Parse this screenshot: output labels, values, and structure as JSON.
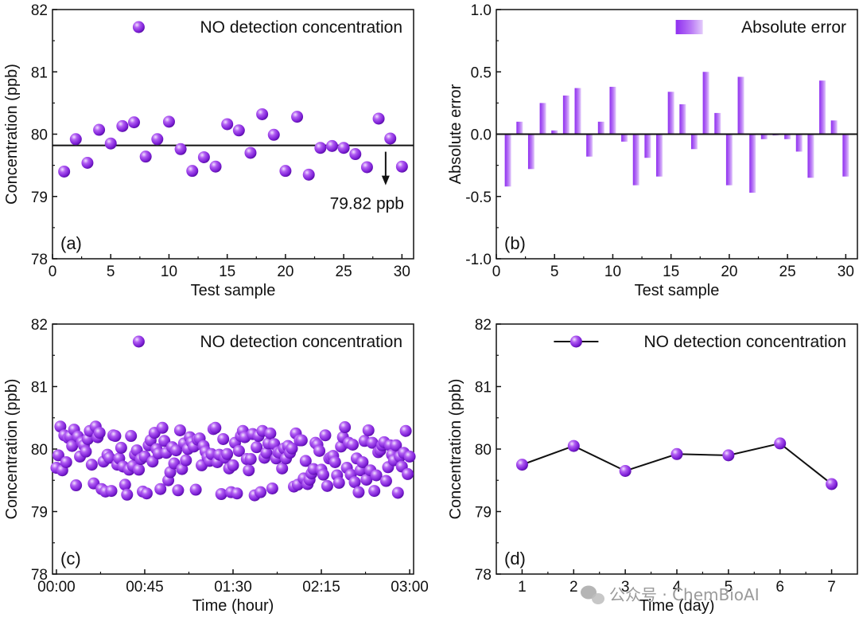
{
  "colors": {
    "accent": "#8a2be2",
    "accent_dark": "#5a0fa8",
    "axis": "#111111"
  },
  "watermark": {
    "text": "公众号 · ChemBioAI",
    "icon": "wechat-icon"
  },
  "chart_data": [
    {
      "id": "a",
      "panel_label": "(a)",
      "type": "scatter",
      "xlabel": "Test sample",
      "ylabel": "Concentration (ppb)",
      "xlim": [
        0,
        31
      ],
      "ylim": [
        78,
        82
      ],
      "xticks": [
        "0",
        "5",
        "10",
        "15",
        "20",
        "25",
        "30"
      ],
      "yticks": [
        "78",
        "79",
        "80",
        "81",
        "82"
      ],
      "legend": {
        "label": "NO detection concentration",
        "position": "top-right"
      },
      "reference_line": {
        "y": 79.82,
        "label": "79.82 ppb"
      },
      "x": [
        1,
        2,
        3,
        4,
        5,
        6,
        7,
        8,
        9,
        10,
        11,
        12,
        13,
        14,
        15,
        16,
        17,
        18,
        19,
        20,
        21,
        22,
        23,
        24,
        25,
        26,
        27,
        28,
        29,
        30
      ],
      "y": [
        79.4,
        79.92,
        79.54,
        80.07,
        79.85,
        80.13,
        80.19,
        79.64,
        79.92,
        80.2,
        79.76,
        79.41,
        79.63,
        79.48,
        80.16,
        80.06,
        79.7,
        80.32,
        79.99,
        79.41,
        80.28,
        79.35,
        79.78,
        79.81,
        79.78,
        79.68,
        79.47,
        80.25,
        79.93,
        79.48
      ]
    },
    {
      "id": "b",
      "panel_label": "(b)",
      "type": "bar",
      "xlabel": "Test sample",
      "ylabel": "Absolute error",
      "xlim": [
        0,
        31
      ],
      "ylim": [
        -1.0,
        1.0
      ],
      "xticks": [
        "0",
        "5",
        "10",
        "15",
        "20",
        "25",
        "30"
      ],
      "yticks": [
        "-1.0",
        "-0.5",
        "0.0",
        "0.5",
        "1.0"
      ],
      "legend": {
        "label": "Absolute error",
        "position": "top-right"
      },
      "x": [
        1,
        2,
        3,
        4,
        5,
        6,
        7,
        8,
        9,
        10,
        11,
        12,
        13,
        14,
        15,
        16,
        17,
        18,
        19,
        20,
        21,
        22,
        23,
        24,
        25,
        26,
        27,
        28,
        29,
        30
      ],
      "values": [
        -0.42,
        0.1,
        -0.28,
        0.25,
        0.03,
        0.31,
        0.37,
        -0.18,
        0.1,
        0.38,
        -0.06,
        -0.41,
        -0.19,
        -0.34,
        0.34,
        0.24,
        -0.12,
        0.5,
        0.17,
        -0.41,
        0.46,
        -0.47,
        -0.04,
        -0.01,
        -0.04,
        -0.14,
        -0.35,
        0.43,
        0.11,
        -0.34
      ]
    },
    {
      "id": "c",
      "panel_label": "(c)",
      "type": "scatter",
      "xlabel": "Time (hour)",
      "ylabel": "Concentration (ppb)",
      "xlim": [
        -2,
        182
      ],
      "ylim": [
        78,
        82
      ],
      "xticks": [
        "00:00",
        "00:45",
        "01:30",
        "02:15",
        "03:00"
      ],
      "xtick_minutes": [
        0,
        45,
        90,
        135,
        180
      ],
      "yticks": [
        "78",
        "79",
        "80",
        "81",
        "82"
      ],
      "legend": {
        "label": "NO detection concentration",
        "position": "top-right"
      },
      "x_minutes": [
        0,
        1,
        2,
        3,
        4,
        5,
        6,
        7,
        8,
        9,
        10,
        11,
        12,
        13,
        14,
        15,
        16,
        17,
        18,
        19,
        20,
        21,
        22,
        23,
        24,
        25,
        26,
        27,
        28,
        29,
        30,
        31,
        32,
        33,
        34,
        35,
        36,
        37,
        38,
        39,
        40,
        41,
        42,
        43,
        44,
        45,
        46,
        47,
        48,
        49,
        50,
        51,
        52,
        53,
        54,
        55,
        56,
        57,
        58,
        59,
        60,
        61,
        62,
        63,
        64,
        65,
        66,
        67,
        68,
        69,
        70,
        71,
        72,
        73,
        74,
        75,
        76,
        77,
        78,
        79,
        80,
        81,
        82,
        83,
        84,
        85,
        86,
        87,
        88,
        89,
        90,
        91,
        92,
        93,
        94,
        95,
        96,
        97,
        98,
        99,
        100,
        101,
        102,
        103,
        104,
        105,
        106,
        107,
        108,
        109,
        110,
        111,
        112,
        113,
        114,
        115,
        116,
        117,
        118,
        119,
        120,
        121,
        122,
        123,
        124,
        125,
        126,
        127,
        128,
        129,
        130,
        131,
        132,
        133,
        134,
        135,
        136,
        137,
        138,
        139,
        140,
        141,
        142,
        143,
        144,
        145,
        146,
        147,
        148,
        149,
        150,
        151,
        152,
        153,
        154,
        155,
        156,
        157,
        158,
        159,
        160,
        161,
        162,
        163,
        164,
        165,
        166,
        167,
        168,
        169,
        170,
        171,
        172,
        173,
        174,
        175,
        176,
        177,
        178,
        179,
        180
      ],
      "y": [
        79.7,
        79.9,
        80.36,
        79.66,
        80.22,
        79.79,
        80.18,
        80.2,
        80.05,
        80.31,
        79.42,
        80.2,
        79.88,
        80.11,
        80.06,
        79.96,
        80.16,
        80.29,
        79.75,
        79.45,
        80.36,
        80.19,
        80.26,
        79.36,
        79.8,
        79.32,
        79.91,
        79.86,
        79.33,
        80.22,
        80.21,
        79.75,
        79.85,
        80.02,
        79.72,
        79.43,
        79.27,
        79.67,
        80.21,
        79.73,
        79.91,
        79.98,
        79.67,
        79.84,
        79.32,
        79.88,
        79.29,
        80.06,
        80.14,
        79.8,
        80.26,
        80.0,
        79.93,
        79.36,
        80.34,
        80.13,
        79.94,
        79.5,
        79.63,
        80.03,
        79.77,
        79.98,
        79.34,
        80.3,
        79.68,
        80.09,
        79.82,
        80.0,
        80.19,
        80.11,
        80.04,
        79.35,
        80.15,
        80.17,
        79.74,
        80.05,
        79.96,
        79.87,
        79.81,
        79.92,
        80.32,
        80.34,
        79.79,
        79.91,
        79.28,
        80.16,
        79.86,
        79.92,
        79.69,
        79.31,
        79.74,
        80.1,
        79.29,
        79.97,
        80.21,
        80.29,
        80.19,
        79.84,
        79.66,
        79.84,
        80.24,
        79.26,
        80.03,
        80.21,
        79.31,
        80.29,
        79.86,
        79.94,
        80.09,
        80.25,
        79.37,
        80.08,
        79.85,
        79.95,
        79.94,
        79.69,
        80.01,
        79.85,
        80.05,
        79.94,
        80.01,
        79.4,
        80.25,
        79.43,
        80.14,
        80.14,
        79.53,
        79.81,
        79.44,
        79.51,
        79.61,
        79.68,
        80.1,
        80.07,
        79.97,
        79.67,
        79.59,
        80.22,
        79.41,
        79.85,
        79.87,
        79.89,
        79.79,
        79.58,
        79.46,
        80.04,
        80.19,
        80.35,
        79.7,
        80.1,
        79.59,
        80.07,
        79.47,
        79.85,
        79.31,
        79.66,
        79.79,
        80.13,
        79.51,
        80.3,
        79.66,
        80.1,
        79.33,
        79.58,
        79.95,
        79.98,
        80.06,
        80.11,
        79.49,
        79.71,
        80.06,
        79.91,
        79.82,
        80.06,
        79.3,
        79.88,
        79.72,
        79.94,
        80.29,
        79.6,
        79.88
      ]
    },
    {
      "id": "d",
      "panel_label": "(d)",
      "type": "line",
      "xlabel": "Time (day)",
      "ylabel": "Concentration (ppb)",
      "xlim": [
        0.5,
        7.5
      ],
      "ylim": [
        78,
        82
      ],
      "xticks": [
        "1",
        "2",
        "3",
        "4",
        "5",
        "6",
        "7"
      ],
      "yticks": [
        "78",
        "79",
        "80",
        "81",
        "82"
      ],
      "legend": {
        "label": "NO detection concentration",
        "position": "top-right"
      },
      "x": [
        1,
        2,
        3,
        4,
        5,
        6,
        7
      ],
      "y": [
        79.75,
        80.05,
        79.65,
        79.92,
        79.9,
        80.09,
        79.44
      ]
    }
  ]
}
